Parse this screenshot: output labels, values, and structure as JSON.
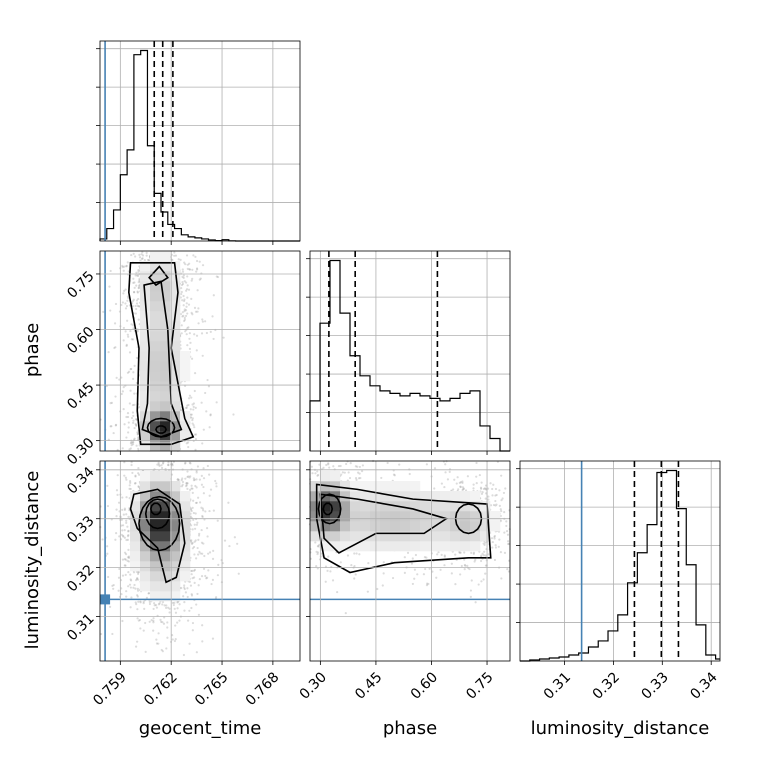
{
  "chart_data": {
    "type": "corner",
    "parameters": [
      "geocent_time",
      "phase",
      "luminosity_distance"
    ],
    "axis_labels": {
      "geocent_time": "geocent_time",
      "phase": "phase",
      "luminosity_distance": "luminosity_distance"
    },
    "ranges": {
      "geocent_time": [
        0.7578,
        0.7696
      ],
      "phase": [
        0.272,
        0.812
      ],
      "luminosity_distance": [
        0.3009,
        0.3418
      ]
    },
    "ticks": {
      "geocent_time": {
        "values": [
          0.759,
          0.762,
          0.765,
          0.768
        ],
        "labels": [
          "0.759",
          "0.762",
          "0.765",
          "0.768"
        ]
      },
      "phase": {
        "values": [
          0.3,
          0.45,
          0.6,
          0.75
        ],
        "labels": [
          "0.30",
          "0.45",
          "0.60",
          "0.75"
        ]
      },
      "luminosity_distance": {
        "values": [
          0.31,
          0.32,
          0.33,
          0.34
        ],
        "labels": [
          "0.31",
          "0.32",
          "0.33",
          "0.34"
        ]
      }
    },
    "truths": {
      "geocent_time": 0.7581,
      "phase": null,
      "luminosity_distance": 0.3135
    },
    "truth_color": "#4682b4",
    "quantiles": {
      "geocent_time": [
        0.761,
        0.7615,
        0.7621
      ],
      "phase": [
        0.323,
        0.394,
        0.616
      ],
      "luminosity_distance": [
        0.3243,
        0.3298,
        0.3333
      ]
    },
    "histograms": {
      "geocent_time": {
        "edges": [
          0.7578,
          0.7582,
          0.7586,
          0.759,
          0.7594,
          0.7598,
          0.7602,
          0.7606,
          0.761,
          0.7614,
          0.7618,
          0.7622,
          0.7626,
          0.763,
          0.7634,
          0.7638,
          0.7642,
          0.7646,
          0.765,
          0.7654,
          0.7658,
          0.7662,
          0.7666,
          0.767,
          0.7674,
          0.7678,
          0.7682,
          0.7686,
          0.769,
          0.7694,
          0.7696
        ],
        "counts": [
          1,
          6,
          15,
          32,
          44,
          90,
          92,
          46,
          23,
          14,
          8,
          6,
          3,
          2,
          1.5,
          1,
          0.5,
          0.2,
          0.6,
          0.1,
          0,
          0,
          0,
          0,
          0,
          0,
          0,
          0,
          0,
          0
        ]
      },
      "phase": {
        "edges": [
          0.272,
          0.299,
          0.326,
          0.353,
          0.38,
          0.407,
          0.434,
          0.461,
          0.488,
          0.515,
          0.542,
          0.569,
          0.596,
          0.623,
          0.65,
          0.677,
          0.704,
          0.731,
          0.758,
          0.785,
          0.812
        ],
        "counts": [
          20,
          51,
          76,
          55,
          38,
          30,
          26,
          24,
          23,
          22,
          23,
          22,
          21,
          20,
          21,
          23,
          24,
          10,
          5,
          0
        ]
      },
      "luminosity_distance": {
        "edges": [
          0.3009,
          0.3029,
          0.3049,
          0.3069,
          0.3089,
          0.3109,
          0.3129,
          0.3149,
          0.3169,
          0.3189,
          0.3209,
          0.3229,
          0.3249,
          0.3269,
          0.3289,
          0.3309,
          0.3329,
          0.3349,
          0.3369,
          0.3389,
          0.3409,
          0.3418
        ],
        "counts": [
          0,
          0.5,
          1,
          1.5,
          2,
          3,
          4,
          7,
          10,
          15,
          23,
          39,
          54,
          68,
          94,
          95,
          76,
          48,
          18,
          3,
          1
        ]
      }
    }
  }
}
